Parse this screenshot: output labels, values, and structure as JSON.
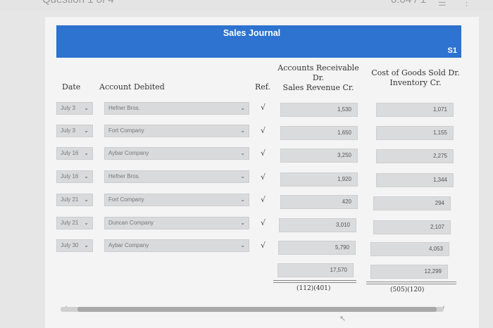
{
  "topbar": {
    "question_label": "Question 1 of 4",
    "timer_text": "0.04 / 1",
    "list_icon": "list-icon",
    "more_icon": "more-vertical-icon"
  },
  "journal": {
    "title": "Sales Journal",
    "page_label": "S1"
  },
  "headers": {
    "date": "Date",
    "account_debited": "Account Debited",
    "ref": "Ref.",
    "ar_line1": "Accounts Receivable",
    "ar_line2": "Dr.",
    "ar_line3": "Sales Revenue Cr.",
    "cogs_line1": "Cost of Goods Sold Dr.",
    "cogs_line2": "Inventory Cr."
  },
  "rows": [
    {
      "date": "July 3",
      "account": "Hefner Bros.",
      "ref": "√",
      "ar": "1,530",
      "cogs": "1,071"
    },
    {
      "date": "July 3",
      "account": "Fort Company",
      "ref": "√",
      "ar": "1,650",
      "cogs": "1,155"
    },
    {
      "date": "July 16",
      "account": "Aybar Company",
      "ref": "√",
      "ar": "3,250",
      "cogs": "2,275"
    },
    {
      "date": "July 16",
      "account": "Hefner Bros.",
      "ref": "√",
      "ar": "1,920",
      "cogs": "1,344"
    },
    {
      "date": "July 21",
      "account": "Fort Company",
      "ref": "√",
      "ar": "420",
      "cogs": "294"
    },
    {
      "date": "July 21",
      "account": "Duncan Company",
      "ref": "√",
      "ar": "3,010",
      "cogs": "2,107"
    },
    {
      "date": "July 30",
      "account": "Aybar Company",
      "ref": "√",
      "ar": "5,790",
      "cogs": "4,053"
    }
  ],
  "totals": {
    "ar_total": "17,570",
    "cogs_total": "12,299",
    "ar_accounts": "(112)(401)",
    "cogs_accounts": "(505)(120)"
  },
  "icons": {
    "dropdown": "chevron-down-icon",
    "scroll_left": "arrow-left-icon",
    "scroll_right": "arrow-right-icon",
    "cursor": "pointer-cursor-icon"
  }
}
